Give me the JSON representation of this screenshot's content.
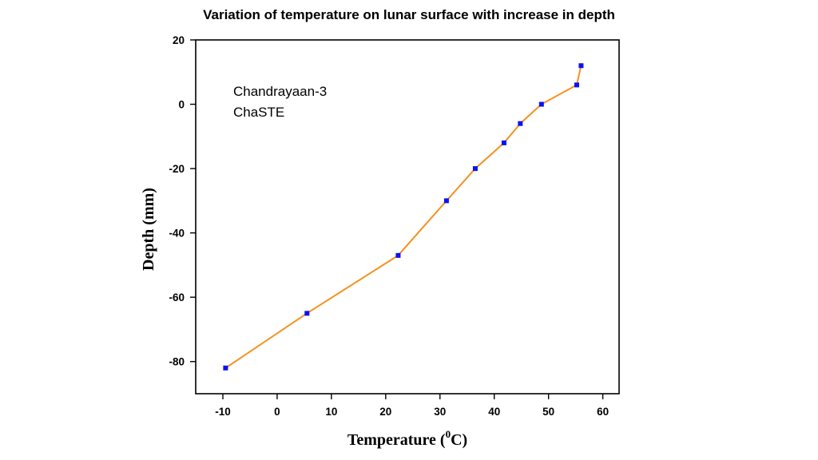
{
  "chart_data": {
    "type": "line",
    "title": "Variation of temperature on lunar surface with increase in depth",
    "xlabel": "Temperature (",
    "xlabel_sup": "0",
    "xlabel_unit": "C)",
    "ylabel": "Depth (mm)",
    "xlim": [
      -15,
      63
    ],
    "ylim": [
      -90,
      20
    ],
    "xticks": [
      -10,
      0,
      10,
      20,
      30,
      40,
      50,
      60
    ],
    "yticks": [
      20,
      0,
      -20,
      -40,
      -60,
      -80
    ],
    "annotations": [
      "Chandrayaan-3",
      "ChaSTE"
    ],
    "grid": false,
    "legend": "none",
    "line_color": "#f5921e",
    "marker_color": "#0b12f2",
    "series": [
      {
        "x": [
          -9.5,
          5.5,
          22.3,
          31.2,
          36.5,
          41.8,
          44.8,
          48.7,
          55.2,
          56.0
        ],
        "y": [
          -82,
          -65,
          -47,
          -30,
          -20,
          -12,
          -6,
          0,
          6,
          12
        ]
      }
    ]
  }
}
